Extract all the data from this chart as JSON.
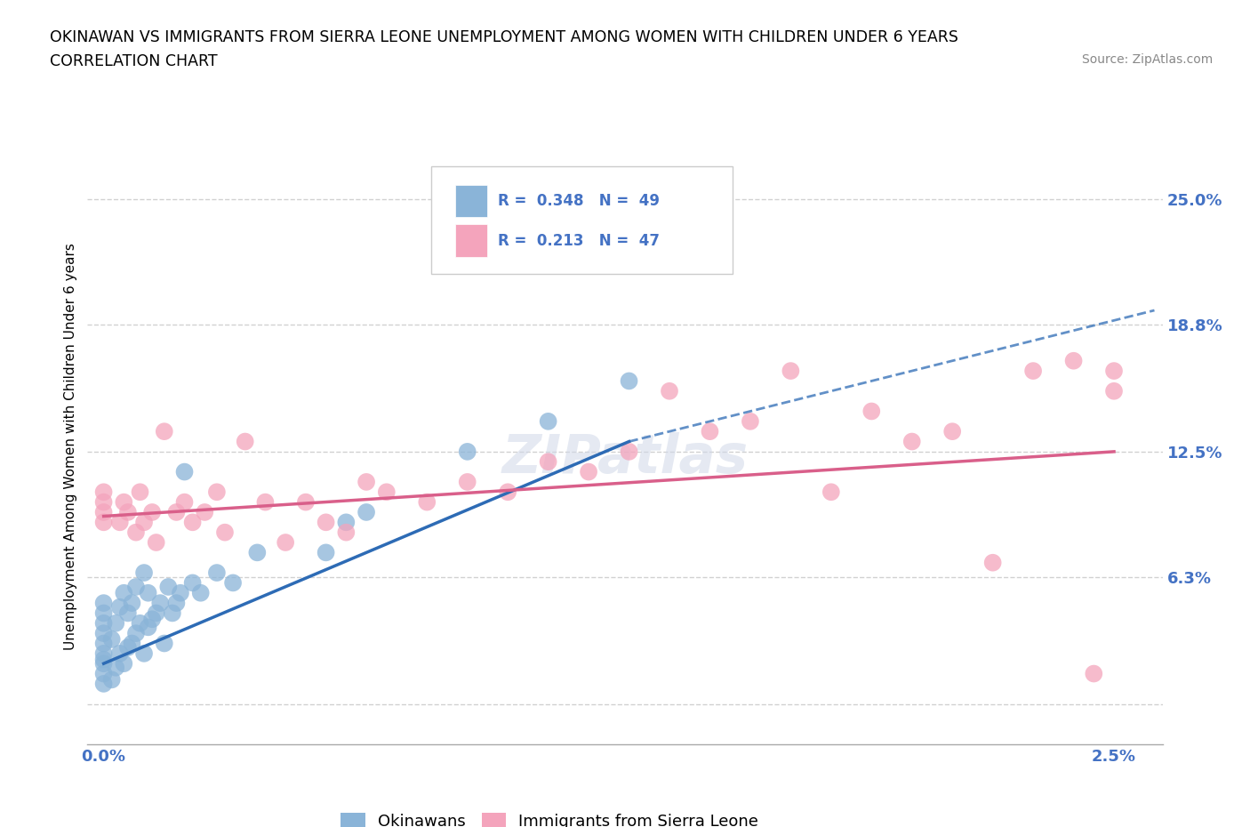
{
  "title_line1": "OKINAWAN VS IMMIGRANTS FROM SIERRA LEONE UNEMPLOYMENT AMONG WOMEN WITH CHILDREN UNDER 6 YEARS",
  "title_line2": "CORRELATION CHART",
  "source_text": "Source: ZipAtlas.com",
  "ylabel": "Unemployment Among Women with Children Under 6 years",
  "blue_color": "#8ab4d8",
  "pink_color": "#f4a4bc",
  "blue_line_color": "#2d6bb5",
  "pink_line_color": "#d95f8a",
  "R_blue": 0.348,
  "N_blue": 49,
  "R_pink": 0.213,
  "N_pink": 47,
  "legend_label_blue": "Okinawans",
  "legend_label_pink": "Immigrants from Sierra Leone",
  "grid_color": "#cccccc",
  "background_color": "#ffffff",
  "label_color": "#4472c4",
  "tick_label_color": "#4472c4",
  "blue_scatter_x": [
    0.0,
    0.0,
    0.0,
    0.0,
    0.0,
    0.0,
    0.0,
    0.0,
    0.0,
    0.0,
    0.02,
    0.02,
    0.03,
    0.03,
    0.04,
    0.04,
    0.05,
    0.05,
    0.06,
    0.06,
    0.07,
    0.07,
    0.08,
    0.08,
    0.09,
    0.1,
    0.1,
    0.11,
    0.11,
    0.12,
    0.13,
    0.14,
    0.15,
    0.16,
    0.17,
    0.18,
    0.19,
    0.2,
    0.22,
    0.24,
    0.28,
    0.32,
    0.38,
    0.55,
    0.6,
    0.65,
    0.9,
    1.1,
    1.3
  ],
  "blue_scatter_y": [
    1.0,
    1.5,
    2.0,
    2.2,
    2.5,
    3.0,
    3.5,
    4.0,
    4.5,
    5.0,
    1.2,
    3.2,
    1.8,
    4.0,
    2.5,
    4.8,
    2.0,
    5.5,
    2.8,
    4.5,
    3.0,
    5.0,
    3.5,
    5.8,
    4.0,
    2.5,
    6.5,
    3.8,
    5.5,
    4.2,
    4.5,
    5.0,
    3.0,
    5.8,
    4.5,
    5.0,
    5.5,
    11.5,
    6.0,
    5.5,
    6.5,
    6.0,
    7.5,
    7.5,
    9.0,
    9.5,
    12.5,
    14.0,
    16.0
  ],
  "pink_scatter_x": [
    0.0,
    0.0,
    0.0,
    0.0,
    0.04,
    0.05,
    0.06,
    0.08,
    0.09,
    0.1,
    0.12,
    0.13,
    0.15,
    0.18,
    0.2,
    0.22,
    0.25,
    0.28,
    0.3,
    0.35,
    0.4,
    0.45,
    0.5,
    0.55,
    0.6,
    0.65,
    0.7,
    0.8,
    0.9,
    1.0,
    1.1,
    1.2,
    1.3,
    1.4,
    1.5,
    1.6,
    1.7,
    1.8,
    1.9,
    2.0,
    2.1,
    2.2,
    2.3,
    2.4,
    2.45,
    2.5,
    2.5
  ],
  "pink_scatter_y": [
    9.0,
    9.5,
    10.0,
    10.5,
    9.0,
    10.0,
    9.5,
    8.5,
    10.5,
    9.0,
    9.5,
    8.0,
    13.5,
    9.5,
    10.0,
    9.0,
    9.5,
    10.5,
    8.5,
    13.0,
    10.0,
    8.0,
    10.0,
    9.0,
    8.5,
    11.0,
    10.5,
    10.0,
    11.0,
    10.5,
    12.0,
    11.5,
    12.5,
    15.5,
    13.5,
    14.0,
    16.5,
    10.5,
    14.5,
    13.0,
    13.5,
    7.0,
    16.5,
    17.0,
    1.5,
    16.5,
    15.5
  ],
  "blue_line_x0": 0.0,
  "blue_line_y0": 2.0,
  "blue_line_x1": 1.3,
  "blue_line_y1": 13.0,
  "blue_dash_x0": 1.3,
  "blue_dash_y0": 13.0,
  "blue_dash_x1": 2.6,
  "blue_dash_y1": 19.5,
  "pink_line_x0": 0.0,
  "pink_line_y0": 9.3,
  "pink_line_x1": 2.5,
  "pink_line_y1": 12.5,
  "xlim_min": -0.04,
  "xlim_max": 2.62,
  "ylim_min": -2.0,
  "ylim_max": 27.5
}
